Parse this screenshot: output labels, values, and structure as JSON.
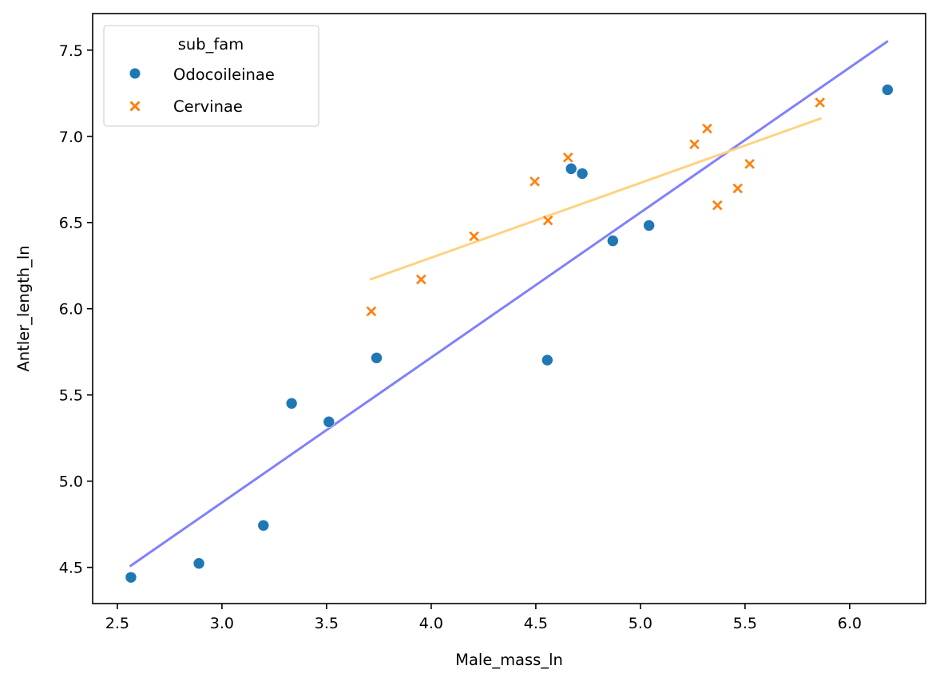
{
  "chart_data": {
    "type": "scatter",
    "title": "",
    "xlabel": "Male_mass_ln",
    "ylabel": "Antler_length_ln",
    "xlim": [
      2.382,
      6.363
    ],
    "ylim": [
      4.29,
      7.712
    ],
    "xticks": [
      2.5,
      3.0,
      3.5,
      4.0,
      4.5,
      5.0,
      5.5,
      6.0
    ],
    "xtick_labels": [
      "2.5",
      "3.0",
      "3.5",
      "4.0",
      "4.5",
      "5.0",
      "5.5",
      "6.0"
    ],
    "yticks": [
      4.5,
      5.0,
      5.5,
      6.0,
      6.5,
      7.0,
      7.5
    ],
    "ytick_labels": [
      "4.5",
      "5.0",
      "5.5",
      "6.0",
      "6.5",
      "7.0",
      "7.5"
    ],
    "grid": false,
    "legend": {
      "title": "sub_fam",
      "placement": "top-left",
      "entries": [
        {
          "label": "Odocoileinae",
          "marker": "circle",
          "color": "#1f77b4"
        },
        {
          "label": "Cervinae",
          "marker": "x",
          "color": "#ff7f0e"
        }
      ]
    },
    "series": [
      {
        "name": "Odocoileinae",
        "marker": "circle",
        "color": "#1f77b4",
        "points": [
          {
            "x": 2.565,
            "y": 4.442
          },
          {
            "x": 2.89,
            "y": 4.523
          },
          {
            "x": 3.198,
            "y": 4.743
          },
          {
            "x": 3.333,
            "y": 5.451
          },
          {
            "x": 3.511,
            "y": 5.344
          },
          {
            "x": 3.739,
            "y": 5.715
          },
          {
            "x": 4.555,
            "y": 5.702
          },
          {
            "x": 4.669,
            "y": 6.812
          },
          {
            "x": 4.722,
            "y": 6.784
          },
          {
            "x": 4.868,
            "y": 6.394
          },
          {
            "x": 5.041,
            "y": 6.483
          },
          {
            "x": 6.181,
            "y": 7.27
          }
        ]
      },
      {
        "name": "Cervinae",
        "marker": "x",
        "color": "#ff7f0e",
        "points": [
          {
            "x": 3.714,
            "y": 5.985
          },
          {
            "x": 3.952,
            "y": 6.17
          },
          {
            "x": 4.205,
            "y": 6.42
          },
          {
            "x": 4.495,
            "y": 6.738
          },
          {
            "x": 4.558,
            "y": 6.512
          },
          {
            "x": 4.654,
            "y": 6.877
          },
          {
            "x": 5.258,
            "y": 6.954
          },
          {
            "x": 5.319,
            "y": 7.045
          },
          {
            "x": 5.368,
            "y": 6.6
          },
          {
            "x": 5.465,
            "y": 6.698
          },
          {
            "x": 5.522,
            "y": 6.84
          },
          {
            "x": 5.858,
            "y": 7.196
          }
        ]
      }
    ],
    "fit_lines": [
      {
        "name": "Odocoileinae fit",
        "color": "#8080ff",
        "points": [
          {
            "x": 2.56,
            "y": 4.506
          },
          {
            "x": 6.183,
            "y": 7.553
          }
        ]
      },
      {
        "name": "Cervinae fit",
        "color": "#ffd280",
        "points": [
          {
            "x": 3.707,
            "y": 6.169
          },
          {
            "x": 5.865,
            "y": 7.105
          }
        ]
      }
    ]
  }
}
